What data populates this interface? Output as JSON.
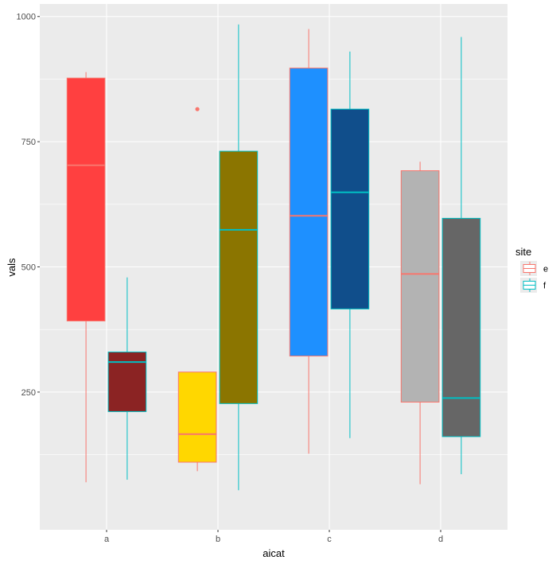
{
  "chart_data": {
    "type": "boxplot",
    "xlabel": "aicat",
    "ylabel": "vals",
    "categories": [
      "a",
      "b",
      "c",
      "d"
    ],
    "ylim": [
      -25,
      1025
    ],
    "yticks": [
      250,
      500,
      750,
      1000
    ],
    "grid": true,
    "legend": {
      "title": "site",
      "position": "right",
      "entries": [
        {
          "label": "e",
          "color": "#F8766D"
        },
        {
          "label": "f",
          "color": "#00BFC4"
        }
      ]
    },
    "series": [
      {
        "name": "e",
        "outline_color": "#F8766D",
        "boxes": [
          {
            "category": "a",
            "whisker_low": 70,
            "q1": 392,
            "median": 703,
            "q3": 877,
            "whisker_high": 889,
            "fill": "#FF4040",
            "outliers": []
          },
          {
            "category": "b",
            "whisker_low": 92,
            "q1": 110,
            "median": 166,
            "q3": 290,
            "whisker_high": 290,
            "fill": "#FFD700",
            "outliers": [
              815
            ]
          },
          {
            "category": "c",
            "whisker_low": 127,
            "q1": 322,
            "median": 602,
            "q3": 897,
            "whisker_high": 975,
            "fill": "#1E90FF",
            "outliers": []
          },
          {
            "category": "d",
            "whisker_low": 66,
            "q1": 230,
            "median": 486,
            "q3": 692,
            "whisker_high": 710,
            "fill": "#B3B3B3",
            "outliers": []
          }
        ]
      },
      {
        "name": "f",
        "outline_color": "#00BFC4",
        "boxes": [
          {
            "category": "a",
            "whisker_low": 75,
            "q1": 211,
            "median": 310,
            "q3": 330,
            "whisker_high": 479,
            "fill": "#8B2323",
            "outliers": []
          },
          {
            "category": "b",
            "whisker_low": 54,
            "q1": 227,
            "median": 574,
            "q3": 731,
            "whisker_high": 984,
            "fill": "#8B7500",
            "outliers": []
          },
          {
            "category": "c",
            "whisker_low": 158,
            "q1": 416,
            "median": 649,
            "q3": 815,
            "whisker_high": 930,
            "fill": "#104E8B",
            "outliers": []
          },
          {
            "category": "d",
            "whisker_low": 86,
            "q1": 161,
            "median": 238,
            "q3": 597,
            "whisker_high": 959,
            "fill": "#666666",
            "outliers": []
          }
        ]
      }
    ]
  }
}
